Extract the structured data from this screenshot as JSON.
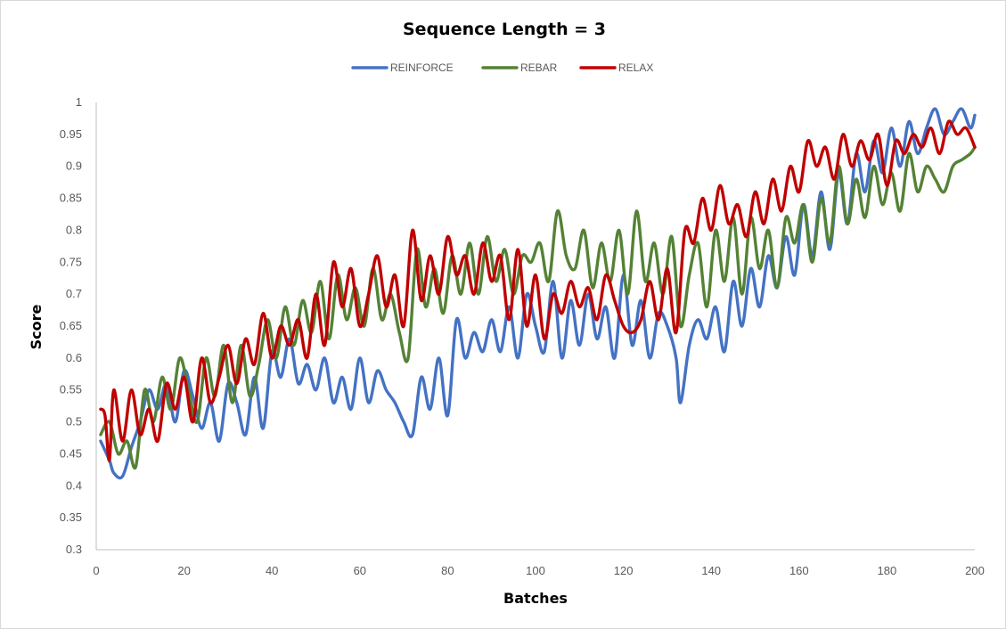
{
  "chart_data": {
    "type": "line",
    "title": "Sequence Length = 3",
    "xlabel": "Batches",
    "ylabel": "Score",
    "xlim": [
      0,
      200
    ],
    "ylim": [
      0.3,
      1.0
    ],
    "x_ticks": [
      "0",
      "20",
      "40",
      "60",
      "80",
      "100",
      "120",
      "140",
      "160",
      "180",
      "200"
    ],
    "y_ticks": [
      "0.3",
      "0.35",
      "0.4",
      "0.45",
      "0.5",
      "0.55",
      "0.6",
      "0.65",
      "0.7",
      "0.75",
      "0.8",
      "0.85",
      "0.9",
      "0.95",
      "1"
    ],
    "grid": false,
    "legend_position": "top",
    "series": [
      {
        "name": "REINFORCE",
        "color": "#4472c4",
        "x": [
          1,
          3,
          4,
          6,
          8,
          10,
          12,
          14,
          16,
          18,
          20,
          22,
          24,
          26,
          28,
          30,
          32,
          34,
          36,
          38,
          40,
          42,
          44,
          46,
          48,
          50,
          52,
          54,
          56,
          58,
          60,
          62,
          64,
          66,
          68,
          70,
          72,
          74,
          76,
          78,
          80,
          82,
          84,
          86,
          88,
          90,
          92,
          94,
          96,
          98,
          100,
          102,
          104,
          106,
          108,
          110,
          112,
          114,
          116,
          118,
          120,
          122,
          124,
          126,
          128,
          130,
          132,
          133,
          135,
          137,
          139,
          141,
          143,
          145,
          147,
          149,
          151,
          153,
          155,
          157,
          159,
          161,
          163,
          165,
          167,
          169,
          171,
          173,
          175,
          177,
          179,
          181,
          183,
          185,
          187,
          189,
          191,
          193,
          195,
          197,
          199,
          200
        ],
        "y": [
          0.47,
          0.44,
          0.42,
          0.415,
          0.46,
          0.5,
          0.55,
          0.52,
          0.56,
          0.5,
          0.58,
          0.54,
          0.49,
          0.53,
          0.47,
          0.56,
          0.53,
          0.48,
          0.57,
          0.49,
          0.61,
          0.57,
          0.63,
          0.56,
          0.59,
          0.55,
          0.6,
          0.53,
          0.57,
          0.52,
          0.6,
          0.53,
          0.58,
          0.55,
          0.53,
          0.5,
          0.48,
          0.57,
          0.52,
          0.6,
          0.51,
          0.66,
          0.6,
          0.64,
          0.61,
          0.66,
          0.61,
          0.68,
          0.6,
          0.7,
          0.65,
          0.61,
          0.72,
          0.6,
          0.69,
          0.62,
          0.7,
          0.63,
          0.68,
          0.6,
          0.73,
          0.62,
          0.69,
          0.6,
          0.67,
          0.65,
          0.6,
          0.53,
          0.62,
          0.66,
          0.63,
          0.68,
          0.61,
          0.72,
          0.65,
          0.74,
          0.68,
          0.76,
          0.71,
          0.79,
          0.73,
          0.84,
          0.76,
          0.86,
          0.77,
          0.89,
          0.81,
          0.92,
          0.86,
          0.94,
          0.89,
          0.96,
          0.9,
          0.97,
          0.92,
          0.96,
          0.99,
          0.95,
          0.97,
          0.99,
          0.96,
          0.98
        ]
      },
      {
        "name": "REBAR",
        "color": "#548235",
        "x": [
          1,
          3,
          5,
          7,
          9,
          11,
          13,
          15,
          17,
          19,
          21,
          23,
          25,
          27,
          29,
          31,
          33,
          35,
          37,
          39,
          41,
          43,
          45,
          47,
          49,
          51,
          53,
          55,
          57,
          59,
          61,
          63,
          65,
          67,
          69,
          71,
          73,
          75,
          77,
          79,
          81,
          83,
          85,
          87,
          89,
          91,
          93,
          95,
          97,
          99,
          101,
          103,
          105,
          107,
          109,
          111,
          113,
          115,
          117,
          119,
          121,
          123,
          125,
          127,
          129,
          131,
          133,
          135,
          137,
          139,
          141,
          143,
          145,
          147,
          149,
          151,
          153,
          155,
          157,
          159,
          161,
          163,
          165,
          167,
          169,
          171,
          173,
          175,
          177,
          179,
          181,
          183,
          185,
          187,
          189,
          191,
          193,
          195,
          197,
          199,
          200
        ],
        "y": [
          0.48,
          0.5,
          0.45,
          0.47,
          0.43,
          0.55,
          0.5,
          0.57,
          0.52,
          0.6,
          0.55,
          0.5,
          0.6,
          0.54,
          0.62,
          0.53,
          0.62,
          0.54,
          0.59,
          0.66,
          0.6,
          0.68,
          0.62,
          0.69,
          0.64,
          0.72,
          0.63,
          0.73,
          0.66,
          0.71,
          0.65,
          0.74,
          0.66,
          0.7,
          0.64,
          0.6,
          0.77,
          0.68,
          0.74,
          0.67,
          0.76,
          0.7,
          0.78,
          0.7,
          0.79,
          0.72,
          0.77,
          0.7,
          0.76,
          0.75,
          0.78,
          0.72,
          0.83,
          0.76,
          0.74,
          0.8,
          0.71,
          0.78,
          0.72,
          0.8,
          0.7,
          0.83,
          0.72,
          0.78,
          0.7,
          0.79,
          0.65,
          0.73,
          0.78,
          0.68,
          0.8,
          0.72,
          0.82,
          0.7,
          0.82,
          0.74,
          0.8,
          0.71,
          0.82,
          0.78,
          0.84,
          0.75,
          0.85,
          0.78,
          0.9,
          0.81,
          0.88,
          0.82,
          0.9,
          0.84,
          0.89,
          0.83,
          0.92,
          0.86,
          0.9,
          0.88,
          0.86,
          0.9,
          0.91,
          0.92,
          0.93
        ]
      },
      {
        "name": "RELAX",
        "color": "#c00000",
        "x": [
          1,
          2,
          3,
          4,
          6,
          8,
          10,
          12,
          14,
          16,
          18,
          20,
          22,
          24,
          26,
          28,
          30,
          32,
          34,
          36,
          38,
          40,
          42,
          44,
          46,
          48,
          50,
          52,
          54,
          56,
          58,
          60,
          62,
          64,
          66,
          68,
          70,
          72,
          74,
          76,
          78,
          80,
          82,
          84,
          86,
          88,
          90,
          92,
          94,
          96,
          98,
          100,
          102,
          104,
          106,
          108,
          110,
          112,
          114,
          116,
          118,
          120,
          122,
          124,
          126,
          128,
          130,
          132,
          134,
          136,
          138,
          140,
          142,
          144,
          146,
          148,
          150,
          152,
          154,
          156,
          158,
          160,
          162,
          164,
          166,
          168,
          170,
          172,
          174,
          176,
          178,
          180,
          182,
          184,
          186,
          188,
          190,
          192,
          194,
          196,
          198,
          200
        ],
        "y": [
          0.52,
          0.51,
          0.44,
          0.55,
          0.47,
          0.55,
          0.48,
          0.52,
          0.47,
          0.56,
          0.52,
          0.57,
          0.5,
          0.6,
          0.53,
          0.57,
          0.62,
          0.56,
          0.63,
          0.59,
          0.67,
          0.6,
          0.65,
          0.62,
          0.66,
          0.6,
          0.7,
          0.62,
          0.75,
          0.68,
          0.74,
          0.65,
          0.7,
          0.76,
          0.68,
          0.73,
          0.65,
          0.8,
          0.69,
          0.76,
          0.7,
          0.79,
          0.73,
          0.76,
          0.7,
          0.78,
          0.72,
          0.76,
          0.66,
          0.77,
          0.65,
          0.73,
          0.63,
          0.7,
          0.67,
          0.72,
          0.68,
          0.71,
          0.66,
          0.73,
          0.69,
          0.65,
          0.64,
          0.66,
          0.72,
          0.66,
          0.74,
          0.64,
          0.8,
          0.78,
          0.85,
          0.8,
          0.87,
          0.81,
          0.84,
          0.79,
          0.86,
          0.81,
          0.88,
          0.83,
          0.9,
          0.86,
          0.94,
          0.9,
          0.93,
          0.88,
          0.95,
          0.9,
          0.94,
          0.91,
          0.95,
          0.87,
          0.94,
          0.92,
          0.95,
          0.93,
          0.96,
          0.92,
          0.97,
          0.95,
          0.96,
          0.93
        ]
      }
    ]
  }
}
